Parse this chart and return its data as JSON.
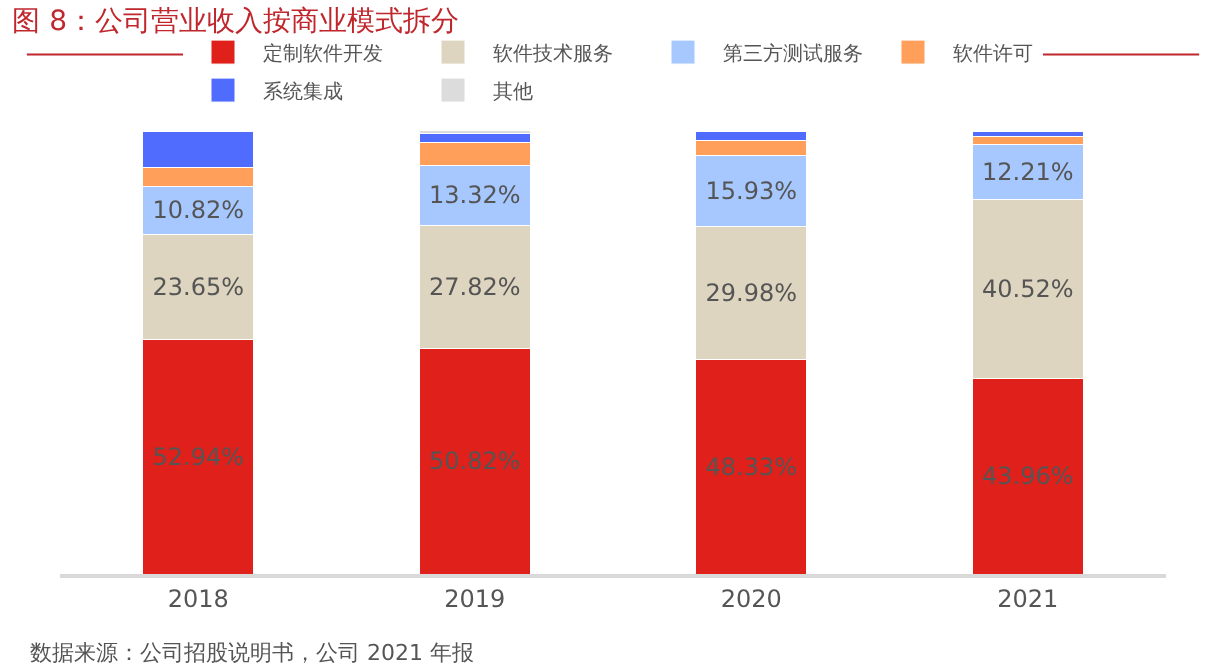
{
  "chart_data": {
    "type": "bar",
    "stacked": true,
    "title": "图 8：公司营业收入按商业模式拆分",
    "categories": [
      "2018",
      "2019",
      "2020",
      "2021"
    ],
    "series": [
      {
        "name": "定制软件开发",
        "color": "#e0201a",
        "values": [
          52.94,
          50.82,
          48.33,
          43.96
        ],
        "value_labels": [
          "52.94%",
          "50.82%",
          "48.33%",
          "43.96%"
        ]
      },
      {
        "name": "软件技术服务",
        "color": "#ddd5bf",
        "values": [
          23.65,
          27.82,
          29.98,
          40.52
        ],
        "value_labels": [
          "23.65%",
          "27.82%",
          "29.98%",
          "40.52%"
        ]
      },
      {
        "name": "第三方测试服务",
        "color": "#a6c8ff",
        "values": [
          10.82,
          13.32,
          15.93,
          12.21
        ],
        "value_labels": [
          "10.82%",
          "13.32%",
          "15.93%",
          "12.21%"
        ]
      },
      {
        "name": "软件许可",
        "color": "#ff9f5a",
        "values": [
          4.3,
          5.2,
          3.5,
          1.8
        ]
      },
      {
        "name": "系统集成",
        "color": "#4f6cff",
        "values": [
          8.0,
          2.2,
          2.0,
          1.2
        ]
      },
      {
        "name": "其他",
        "color": "#dcdcdc",
        "values": [
          0.3,
          0.6,
          0.3,
          0.3
        ]
      }
    ],
    "legend": "top",
    "annotations": [
      "数据来源：公司招股说明书，公司 2021 年报"
    ]
  }
}
